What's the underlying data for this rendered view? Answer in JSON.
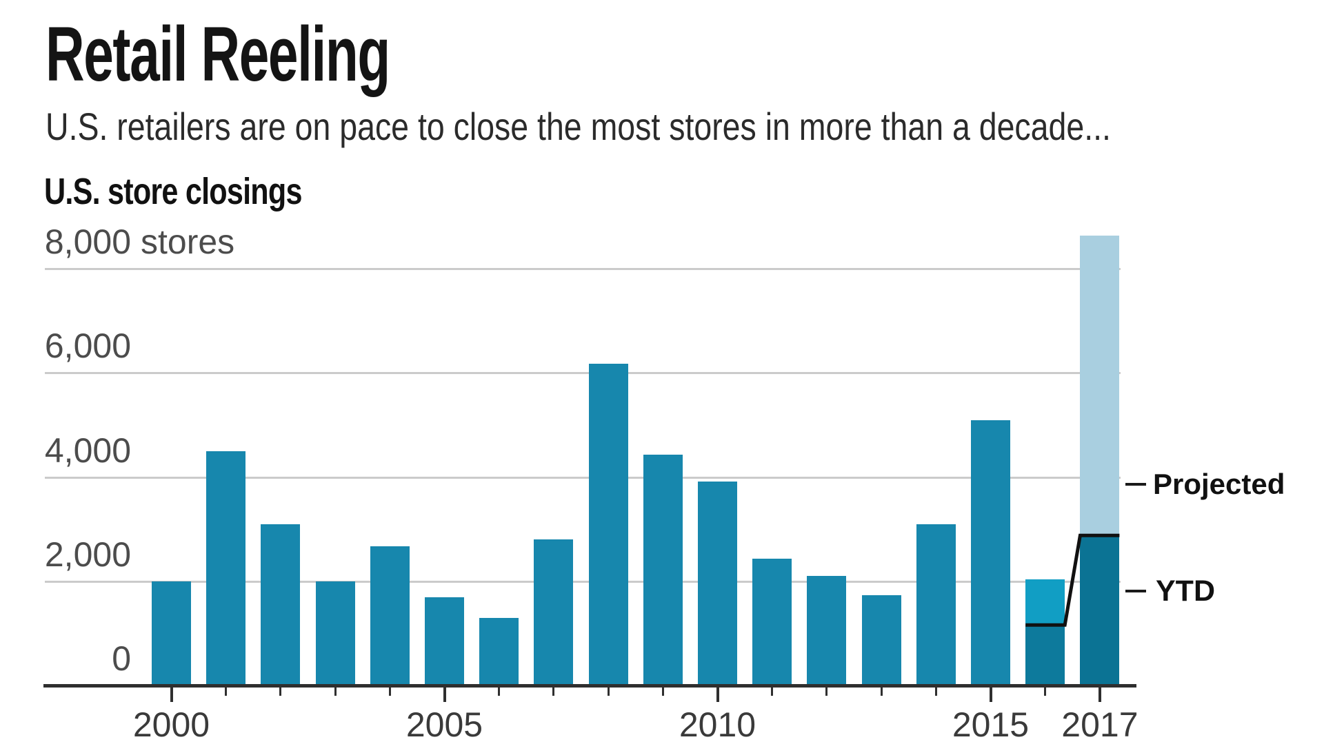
{
  "header": {
    "title": "Retail Reeling",
    "subtitle": "U.S. retailers are on pace to close the most stores in more than a decade..."
  },
  "chart": {
    "section_title": "U.S. store closings"
  },
  "chart_data": {
    "type": "bar",
    "title": "U.S. store closings",
    "unit": "stores",
    "categories": [
      "2000",
      "2001",
      "2002",
      "2003",
      "2004",
      "2005",
      "2006",
      "2007",
      "2008",
      "2009",
      "2010",
      "2011",
      "2012",
      "2013",
      "2014",
      "2015",
      "2016",
      "2017"
    ],
    "values": [
      2000,
      4490,
      3090,
      2000,
      2670,
      1690,
      1300,
      2800,
      6170,
      4430,
      3910,
      2430,
      2100,
      1730,
      3090,
      5090,
      2040,
      8640
    ],
    "ylim": [
      0,
      8640
    ],
    "grid": "horizontal",
    "y_ticks": [
      {
        "value": 8000,
        "label": "8,000",
        "suffix": "stores"
      },
      {
        "value": 6000,
        "label": "6,000"
      },
      {
        "value": 4000,
        "label": "4,000"
      },
      {
        "value": 2000,
        "label": "2,000"
      },
      {
        "value": 0,
        "label": "0"
      }
    ],
    "x_tick_labels": [
      "2000",
      "2005",
      "2010",
      "2015",
      "2017"
    ],
    "notes": {
      "projected_2017_total": 8640,
      "ytd_2017": 2880,
      "ytd_2016_marker": 1160
    },
    "annotations": {
      "projected": {
        "label": "Projected"
      },
      "ytd": {
        "label": "YTD"
      }
    },
    "colors": {
      "bar": "#1787ad",
      "bar_2016_upper": "#119ec4",
      "bar_2016_lower": "#0d7a9c",
      "bar_2017_ytd": "#0b7394",
      "bar_2017_projected": "#a9cfe0",
      "step_line": "#111111",
      "gridline": "#cbcbcb",
      "axis": "#2f2f2f"
    }
  }
}
